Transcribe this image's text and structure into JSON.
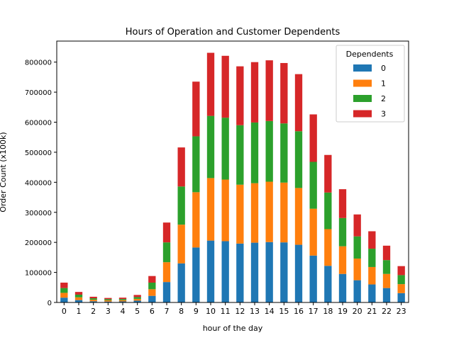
{
  "chart_data": {
    "type": "bar",
    "stacked": true,
    "title": "Hours of Operation and Customer Dependents",
    "xlabel": "hour of the day",
    "ylabel": "Order Count (x100k)",
    "categories": [
      "0",
      "1",
      "2",
      "3",
      "4",
      "5",
      "6",
      "7",
      "8",
      "9",
      "10",
      "11",
      "12",
      "13",
      "14",
      "15",
      "16",
      "17",
      "18",
      "19",
      "20",
      "21",
      "22",
      "23"
    ],
    "ylim": [
      0,
      870000
    ],
    "yticks": [
      0,
      100000,
      200000,
      300000,
      400000,
      500000,
      600000,
      700000,
      800000
    ],
    "ytick_labels": [
      "0",
      "100000",
      "200000",
      "300000",
      "400000",
      "500000",
      "600000",
      "700000",
      "800000"
    ],
    "legend": {
      "title": "Dependents",
      "position": "top-right"
    },
    "grid": false,
    "series": [
      {
        "name": "0",
        "color": "#1f77b4",
        "values": [
          16000,
          8000,
          4000,
          3000,
          3500,
          6000,
          22000,
          68000,
          130000,
          183000,
          206000,
          204000,
          196000,
          199000,
          201000,
          200000,
          192000,
          156000,
          122000,
          95000,
          74000,
          60000,
          48000,
          31000
        ]
      },
      {
        "name": "1",
        "color": "#ff7f0e",
        "values": [
          16000,
          9000,
          5000,
          4000,
          4000,
          6000,
          22000,
          66000,
          129000,
          184000,
          208000,
          205000,
          196000,
          198000,
          201000,
          199000,
          189000,
          156000,
          122000,
          92000,
          72000,
          58000,
          47000,
          30000
        ]
      },
      {
        "name": "2",
        "color": "#2ca02c",
        "values": [
          16000,
          9000,
          5000,
          4000,
          4000,
          6000,
          22000,
          66000,
          127000,
          186000,
          207000,
          206000,
          198000,
          202000,
          202000,
          197000,
          189000,
          156000,
          122000,
          94000,
          74000,
          61000,
          46000,
          30000
        ]
      },
      {
        "name": "3",
        "color": "#d62728",
        "values": [
          18000,
          9000,
          5000,
          4000,
          4500,
          7000,
          22000,
          66000,
          130000,
          182000,
          210000,
          206000,
          196000,
          201000,
          202000,
          201000,
          190000,
          158000,
          125000,
          96000,
          73000,
          58000,
          48000,
          30000
        ]
      }
    ]
  }
}
